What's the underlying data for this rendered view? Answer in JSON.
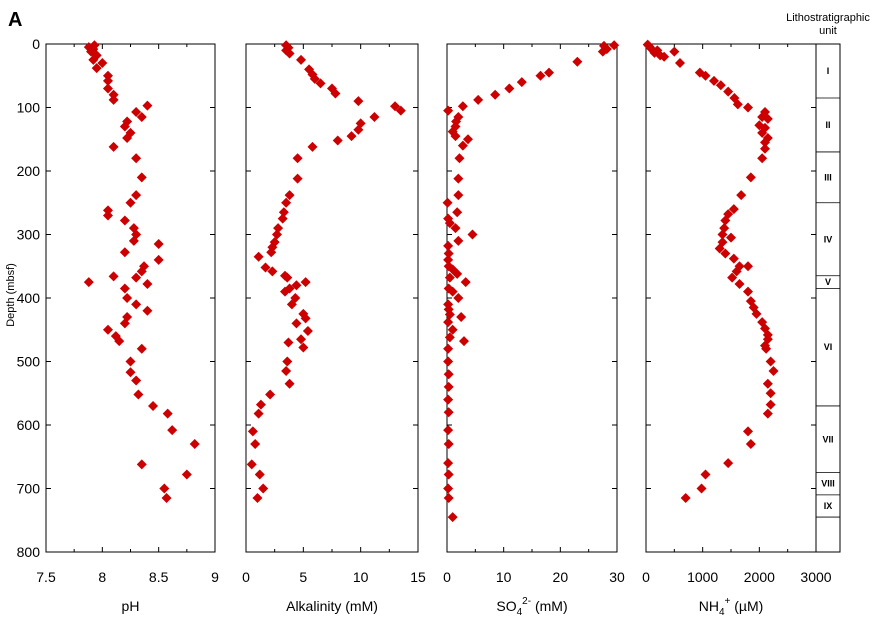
{
  "figure": {
    "panel_label": "A",
    "ylabel": "Depth (mbsf)",
    "ylim": [
      0,
      800
    ],
    "yticks": [
      0,
      100,
      200,
      300,
      400,
      500,
      600,
      700,
      800
    ],
    "marker_color": "#cc0000"
  },
  "lithology": {
    "title_line1": "Lithostratigraphic",
    "title_line2": "unit",
    "boundaries": [
      0,
      85,
      170,
      250,
      365,
      385,
      570,
      675,
      710,
      745,
      800
    ],
    "units": [
      {
        "label": "I",
        "top": 0,
        "bottom": 85
      },
      {
        "label": "II",
        "top": 85,
        "bottom": 170
      },
      {
        "label": "III",
        "top": 170,
        "bottom": 250
      },
      {
        "label": "IV",
        "top": 250,
        "bottom": 365
      },
      {
        "label": "V",
        "top": 365,
        "bottom": 385
      },
      {
        "label": "VI",
        "top": 385,
        "bottom": 570
      },
      {
        "label": "VII",
        "top": 570,
        "bottom": 675
      },
      {
        "label": "VIII",
        "top": 675,
        "bottom": 710
      },
      {
        "label": "IX",
        "top": 710,
        "bottom": 745
      }
    ]
  },
  "chart_data": [
    {
      "type": "scatter",
      "xlabel": "pH",
      "xlim": [
        7.5,
        9
      ],
      "xticks": [
        "7.5",
        "8",
        "8.5",
        "9"
      ],
      "points": [
        [
          7.93,
          2
        ],
        [
          7.88,
          5
        ],
        [
          7.92,
          8
        ],
        [
          7.9,
          12
        ],
        [
          7.95,
          18
        ],
        [
          7.92,
          25
        ],
        [
          8.0,
          30
        ],
        [
          7.95,
          38
        ],
        [
          8.05,
          50
        ],
        [
          8.05,
          58
        ],
        [
          8.05,
          70
        ],
        [
          8.1,
          80
        ],
        [
          8.1,
          88
        ],
        [
          8.4,
          97
        ],
        [
          8.3,
          107
        ],
        [
          8.35,
          115
        ],
        [
          8.22,
          122
        ],
        [
          8.2,
          130
        ],
        [
          8.25,
          140
        ],
        [
          8.22,
          148
        ],
        [
          8.1,
          162
        ],
        [
          8.3,
          180
        ],
        [
          8.35,
          210
        ],
        [
          8.3,
          238
        ],
        [
          8.25,
          250
        ],
        [
          8.05,
          262
        ],
        [
          8.05,
          270
        ],
        [
          8.2,
          278
        ],
        [
          8.28,
          290
        ],
        [
          8.3,
          300
        ],
        [
          8.28,
          310
        ],
        [
          8.5,
          315
        ],
        [
          8.2,
          328
        ],
        [
          8.5,
          340
        ],
        [
          8.37,
          350
        ],
        [
          8.35,
          358
        ],
        [
          8.3,
          368
        ],
        [
          7.88,
          375
        ],
        [
          8.1,
          366
        ],
        [
          8.4,
          378
        ],
        [
          8.2,
          385
        ],
        [
          8.22,
          400
        ],
        [
          8.3,
          410
        ],
        [
          8.4,
          420
        ],
        [
          8.22,
          430
        ],
        [
          8.2,
          440
        ],
        [
          8.05,
          450
        ],
        [
          8.12,
          460
        ],
        [
          8.15,
          468
        ],
        [
          8.35,
          480
        ],
        [
          8.25,
          500
        ],
        [
          8.25,
          517
        ],
        [
          8.3,
          530
        ],
        [
          8.32,
          552
        ],
        [
          8.45,
          570
        ],
        [
          8.58,
          582
        ],
        [
          8.62,
          608
        ],
        [
          8.82,
          630
        ],
        [
          8.35,
          662
        ],
        [
          8.75,
          678
        ],
        [
          8.55,
          700
        ],
        [
          8.57,
          715
        ]
      ]
    },
    {
      "type": "scatter",
      "xlabel": "Alkalinity (mM)",
      "xlim": [
        0,
        15
      ],
      "xticks": [
        "0",
        "5",
        "10",
        "15"
      ],
      "points": [
        [
          3.5,
          2
        ],
        [
          3.7,
          6
        ],
        [
          3.5,
          10
        ],
        [
          3.8,
          15
        ],
        [
          4.8,
          25
        ],
        [
          5.5,
          40
        ],
        [
          5.8,
          48
        ],
        [
          6.0,
          55
        ],
        [
          6.5,
          62
        ],
        [
          7.5,
          70
        ],
        [
          7.8,
          78
        ],
        [
          9.8,
          90
        ],
        [
          13.0,
          98
        ],
        [
          13.5,
          105
        ],
        [
          11.2,
          115
        ],
        [
          10.0,
          125
        ],
        [
          9.8,
          135
        ],
        [
          9.2,
          145
        ],
        [
          8.0,
          152
        ],
        [
          5.8,
          162
        ],
        [
          4.5,
          180
        ],
        [
          4.5,
          212
        ],
        [
          3.8,
          238
        ],
        [
          3.5,
          250
        ],
        [
          3.3,
          265
        ],
        [
          3.2,
          275
        ],
        [
          2.8,
          290
        ],
        [
          2.7,
          300
        ],
        [
          2.5,
          312
        ],
        [
          2.3,
          320
        ],
        [
          2.2,
          328
        ],
        [
          1.1,
          335
        ],
        [
          1.7,
          352
        ],
        [
          2.3,
          358
        ],
        [
          3.4,
          365
        ],
        [
          3.6,
          368
        ],
        [
          5.2,
          375
        ],
        [
          4.4,
          380
        ],
        [
          3.8,
          385
        ],
        [
          3.4,
          390
        ],
        [
          4.3,
          400
        ],
        [
          4.0,
          410
        ],
        [
          5.0,
          425
        ],
        [
          5.2,
          432
        ],
        [
          4.4,
          440
        ],
        [
          5.4,
          452
        ],
        [
          4.8,
          465
        ],
        [
          3.7,
          470
        ],
        [
          5.0,
          478
        ],
        [
          3.6,
          500
        ],
        [
          3.5,
          515
        ],
        [
          3.8,
          535
        ],
        [
          2.1,
          552
        ],
        [
          1.3,
          568
        ],
        [
          1.1,
          582
        ],
        [
          0.6,
          610
        ],
        [
          0.8,
          630
        ],
        [
          0.5,
          662
        ],
        [
          1.2,
          678
        ],
        [
          1.5,
          700
        ],
        [
          1.0,
          715
        ]
      ]
    },
    {
      "type": "scatter",
      "xlabel": "SO42- (mM)",
      "xlabel_main": "SO",
      "xlabel_sub": "4",
      "xlabel_sup": "2-",
      "xlabel_unit": " (mM)",
      "xlim": [
        0,
        30
      ],
      "xticks": [
        "0",
        "10",
        "20",
        "30"
      ],
      "points": [
        [
          29.5,
          2
        ],
        [
          27.7,
          3
        ],
        [
          28.2,
          8
        ],
        [
          27.5,
          12
        ],
        [
          23.0,
          28
        ],
        [
          18.0,
          45
        ],
        [
          16.5,
          50
        ],
        [
          13.2,
          60
        ],
        [
          11.0,
          70
        ],
        [
          8.5,
          80
        ],
        [
          5.5,
          88
        ],
        [
          2.8,
          98
        ],
        [
          0.2,
          105
        ],
        [
          2.0,
          115
        ],
        [
          1.6,
          122
        ],
        [
          1.5,
          130
        ],
        [
          1.0,
          138
        ],
        [
          1.5,
          145
        ],
        [
          3.7,
          150
        ],
        [
          2.8,
          160
        ],
        [
          2.2,
          180
        ],
        [
          2.0,
          212
        ],
        [
          2.0,
          238
        ],
        [
          0.1,
          250
        ],
        [
          1.8,
          265
        ],
        [
          0.2,
          275
        ],
        [
          0.5,
          282
        ],
        [
          1.5,
          290
        ],
        [
          4.5,
          300
        ],
        [
          2.0,
          310
        ],
        [
          0.2,
          318
        ],
        [
          0.3,
          330
        ],
        [
          0.2,
          340
        ],
        [
          0.3,
          350
        ],
        [
          1.0,
          355
        ],
        [
          1.8,
          362
        ],
        [
          0.5,
          368
        ],
        [
          3.3,
          375
        ],
        [
          0.3,
          385
        ],
        [
          1.0,
          390
        ],
        [
          2.0,
          400
        ],
        [
          0.2,
          410
        ],
        [
          0.3,
          418
        ],
        [
          0.5,
          426
        ],
        [
          2.5,
          430
        ],
        [
          0.2,
          438
        ],
        [
          1.0,
          450
        ],
        [
          0.5,
          462
        ],
        [
          3.0,
          468
        ],
        [
          0.2,
          480
        ],
        [
          0.2,
          500
        ],
        [
          0.3,
          520
        ],
        [
          0.3,
          540
        ],
        [
          0.2,
          560
        ],
        [
          0.3,
          580
        ],
        [
          0.2,
          608
        ],
        [
          0.3,
          630
        ],
        [
          0.2,
          660
        ],
        [
          0.3,
          678
        ],
        [
          0.2,
          700
        ],
        [
          0.3,
          715
        ],
        [
          1.0,
          745
        ]
      ]
    },
    {
      "type": "scatter",
      "xlabel": "NH4+ (µM)",
      "xlabel_main": "NH",
      "xlabel_sub": "4",
      "xlabel_sup": "+",
      "xlabel_unit": " (µM)",
      "xlim": [
        0,
        3000
      ],
      "xticks": [
        "0",
        "1000",
        "2000",
        "3000"
      ],
      "points": [
        [
          30,
          1
        ],
        [
          60,
          4
        ],
        [
          100,
          8
        ],
        [
          200,
          10
        ],
        [
          150,
          14
        ],
        [
          250,
          18
        ],
        [
          320,
          20
        ],
        [
          500,
          12
        ],
        [
          600,
          30
        ],
        [
          950,
          45
        ],
        [
          1050,
          50
        ],
        [
          1200,
          58
        ],
        [
          1320,
          65
        ],
        [
          1450,
          75
        ],
        [
          1560,
          85
        ],
        [
          1620,
          95
        ],
        [
          1800,
          100
        ],
        [
          2100,
          107
        ],
        [
          2050,
          115
        ],
        [
          2150,
          118
        ],
        [
          2000,
          128
        ],
        [
          2100,
          132
        ],
        [
          2050,
          140
        ],
        [
          2150,
          148
        ],
        [
          2100,
          155
        ],
        [
          2100,
          165
        ],
        [
          2050,
          180
        ],
        [
          1850,
          210
        ],
        [
          1680,
          238
        ],
        [
          1550,
          260
        ],
        [
          1450,
          268
        ],
        [
          1400,
          278
        ],
        [
          1380,
          290
        ],
        [
          1350,
          300
        ],
        [
          1500,
          305
        ],
        [
          1350,
          312
        ],
        [
          1300,
          322
        ],
        [
          1400,
          330
        ],
        [
          1550,
          338
        ],
        [
          1650,
          350
        ],
        [
          1800,
          350
        ],
        [
          1600,
          358
        ],
        [
          1520,
          368
        ],
        [
          1650,
          378
        ],
        [
          1800,
          390
        ],
        [
          1850,
          405
        ],
        [
          1900,
          415
        ],
        [
          1950,
          425
        ],
        [
          2050,
          438
        ],
        [
          2100,
          448
        ],
        [
          2150,
          458
        ],
        [
          2150,
          465
        ],
        [
          2100,
          475
        ],
        [
          2120,
          480
        ],
        [
          2200,
          500
        ],
        [
          2250,
          515
        ],
        [
          2150,
          535
        ],
        [
          2200,
          550
        ],
        [
          2200,
          568
        ],
        [
          2150,
          582
        ],
        [
          1800,
          610
        ],
        [
          1850,
          630
        ],
        [
          1450,
          660
        ],
        [
          1050,
          678
        ],
        [
          980,
          700
        ],
        [
          700,
          715
        ]
      ]
    }
  ]
}
